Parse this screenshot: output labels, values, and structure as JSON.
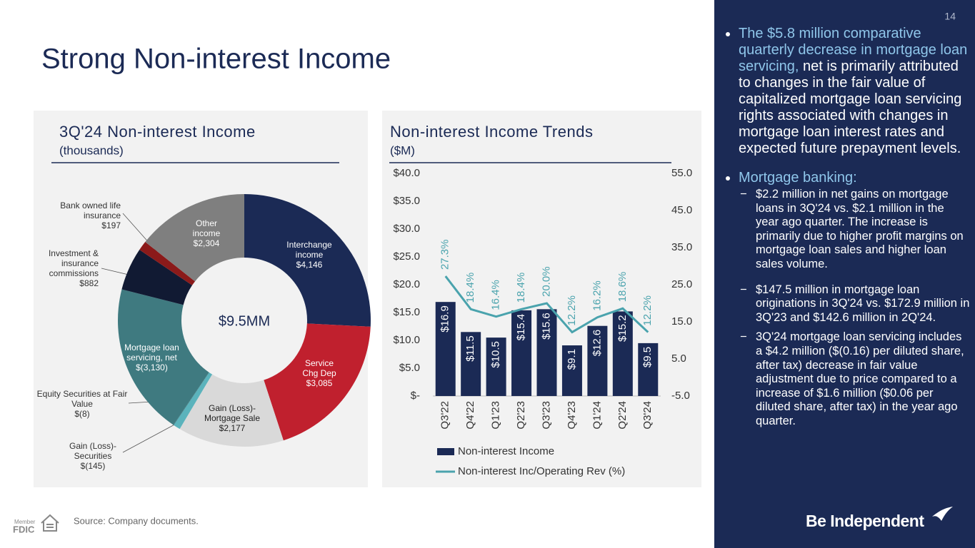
{
  "page_number": "14",
  "title": "Strong Non-interest Income",
  "bullets": [
    {
      "highlight": "The $5.8 million comparative quarterly decrease in mortgage loan servicing,",
      "text": "net is primarily attributed to changes in the fair value of capitalized mortgage loan servicing rights associated with changes in mortgage loan interest rates and expected future prepayment levels."
    },
    {
      "highlight": "Mortgage banking:",
      "sub": [
        "$2.2 million in net gains on mortgage loans in 3Q'24 vs. $2.1 million in the year ago quarter. The increase is primarily due to higher profit margins on mortgage loan sales and higher loan sales volume.",
        "$147.5 million in mortgage loan originations in 3Q'24 vs. $172.9 million in 3Q'23 and $142.6 million in 2Q'24.",
        "3Q'24 mortgage loan servicing includes a $4.2 million ($(0.16) per diluted share, after tax) decrease in fair value adjustment due to price compared to a increase of $1.6 million ($0.06 per diluted share, after tax) in the year ago quarter."
      ]
    }
  ],
  "source": "Source: Company documents.",
  "footer": {
    "member": "Member",
    "fdic": "FDIC",
    "brand": "Be Independent"
  },
  "chart_data": [
    {
      "type": "donut",
      "title": "3Q'24 Non-interest Income",
      "subtitle": "(thousands)",
      "center_label": "$9.5MM",
      "categories": [
        "Interchange income",
        "Service Chg Dep",
        "Gain (Loss)- Mortgage Sale",
        "Gain (Loss)- Securities",
        "Equity Securities at Fair Value",
        "Mortgage loan servicing, net",
        "Investment & insurance commissions",
        "Bank owned life insurance",
        "Other income"
      ],
      "values": [
        4146,
        3085,
        2177,
        -145,
        -8,
        -3130,
        882,
        197,
        2304
      ],
      "value_labels": [
        "$4,146",
        "$3,085",
        "$2,177",
        "$(145)",
        "$(8)",
        "$(3,130)",
        "$882",
        "$197",
        "$2,304"
      ],
      "colors": [
        "#1b2a55",
        "#c0202e",
        "#d9d9d9",
        "#5bb3bc",
        "#2f6f77",
        "#3f7a80",
        "#111a33",
        "#8b1a1a",
        "#7f7f7f"
      ]
    },
    {
      "type": "combo",
      "title": "Non-interest Income Trends",
      "subtitle": "($M)",
      "categories": [
        "Q3'22",
        "Q4'22",
        "Q1'23",
        "Q2'23",
        "Q3'23",
        "Q4'23",
        "Q1'24",
        "Q2'24",
        "Q3'24"
      ],
      "series": [
        {
          "name": "Non-interest Income",
          "type": "bar",
          "color": "#1b2a55",
          "values": [
            16.9,
            11.5,
            10.5,
            15.4,
            15.6,
            9.1,
            12.6,
            15.2,
            9.5
          ],
          "value_labels": [
            "$16.9",
            "$11.5",
            "$10.5",
            "$15.4",
            "$15.6",
            "$9.1",
            "$12.6",
            "$15.2",
            "$9.5"
          ]
        },
        {
          "name": "Non-interest Inc/Operating Rev (%)",
          "type": "line",
          "axis": "y2",
          "color": "#4aa3ad",
          "values": [
            27.3,
            18.4,
            16.4,
            18.4,
            20.0,
            12.2,
            16.2,
            18.6,
            12.2
          ],
          "value_labels": [
            "27.3%",
            "18.4%",
            "16.4%",
            "18.4%",
            "20.0%",
            "12.2%",
            "16.2%",
            "18.6%",
            "12.2%"
          ]
        }
      ],
      "ylim": [
        0,
        40
      ],
      "yticks": [
        {
          "value": 0,
          "label": "$-"
        },
        {
          "value": 5,
          "label": "$5.0"
        },
        {
          "value": 10,
          "label": "$10.0"
        },
        {
          "value": 15,
          "label": "$15.0"
        },
        {
          "value": 20,
          "label": "$20.0"
        },
        {
          "value": 25,
          "label": "$25.0"
        },
        {
          "value": 30,
          "label": "$30.0"
        },
        {
          "value": 35,
          "label": "$35.0"
        },
        {
          "value": 40,
          "label": "$40.0"
        }
      ],
      "y2lim": [
        -5,
        55
      ],
      "y2ticks": [
        {
          "value": -5,
          "label": "-5.0"
        },
        {
          "value": 5,
          "label": "5.0"
        },
        {
          "value": 15,
          "label": "15.0"
        },
        {
          "value": 25,
          "label": "25.0"
        },
        {
          "value": 35,
          "label": "35.0"
        },
        {
          "value": 45,
          "label": "45.0"
        },
        {
          "value": 55,
          "label": "55.0"
        }
      ],
      "legend": "bottom"
    }
  ]
}
